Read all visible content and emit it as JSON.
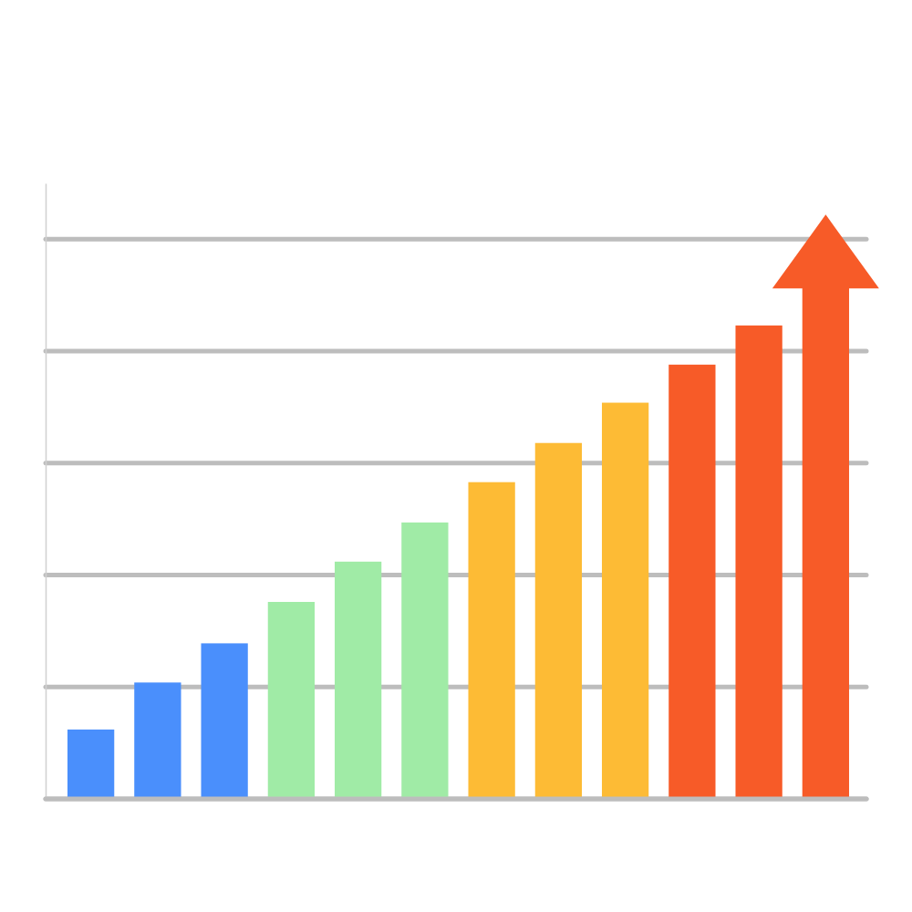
{
  "chart_data": {
    "type": "bar",
    "categories": [
      null,
      null,
      null,
      null,
      null,
      null,
      null,
      null,
      null,
      null,
      null,
      null
    ],
    "values": [
      0.62,
      1.04,
      1.39,
      1.76,
      2.12,
      2.47,
      2.83,
      3.18,
      3.54,
      3.88,
      4.23,
      5.22
    ],
    "colors": [
      "#4a8ffc",
      "#4a8ffc",
      "#4a8ffc",
      "#a0eba6",
      "#a0eba6",
      "#a0eba6",
      "#fdbb35",
      "#fdbb35",
      "#fdbb35",
      "#f75b28",
      "#f75b28",
      "#f75b28"
    ],
    "ylim": [
      0,
      5.5
    ],
    "yticks": [
      0,
      1,
      2,
      3,
      4,
      5
    ],
    "grid": true,
    "tick_labels": false,
    "marker": "arrow"
  }
}
